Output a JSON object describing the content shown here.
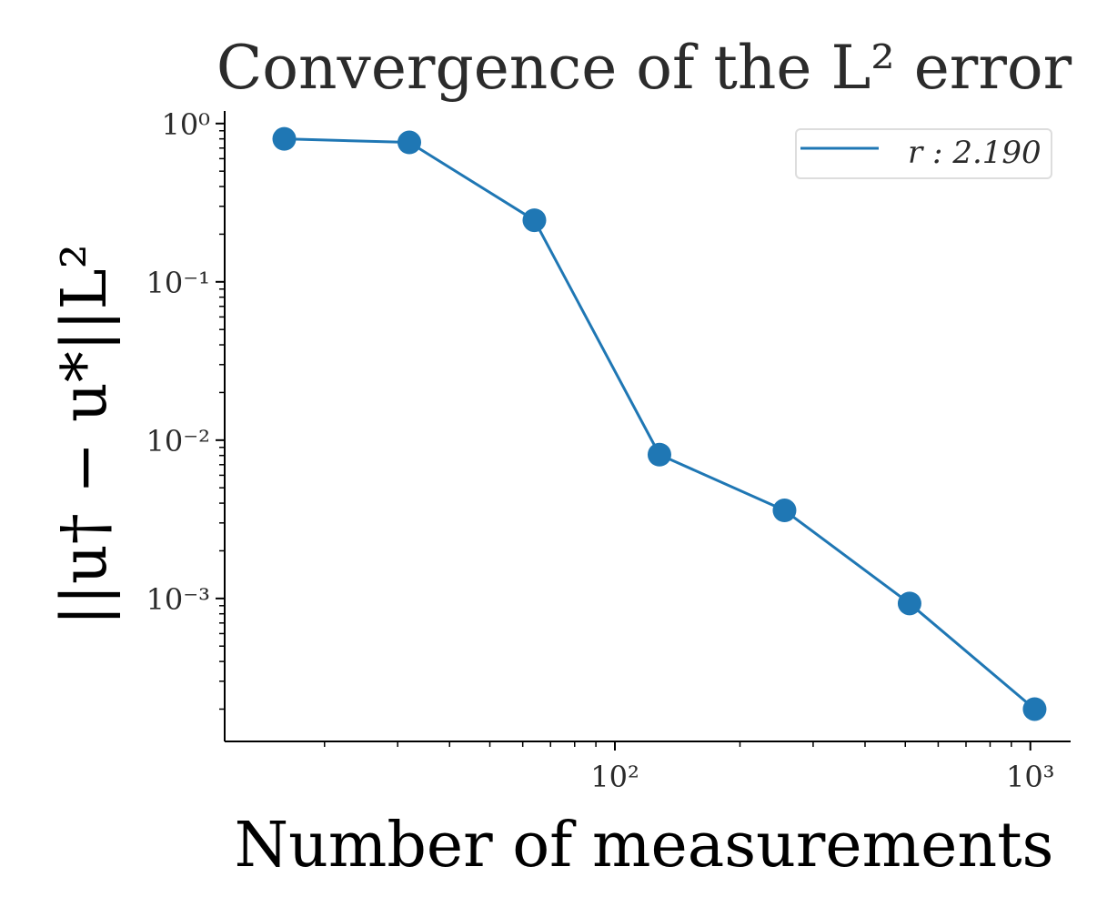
{
  "chart_data": {
    "type": "line",
    "title": "Convergence of the L² error",
    "xlabel": "Number of measurements",
    "ylabel": "||u† − u*||L²",
    "x_scale": "log",
    "y_scale": "log",
    "xlim": [
      11.5,
      1250
    ],
    "ylim": [
      0.000125,
      1.2
    ],
    "x_tick_labels": [
      "10²",
      "10³"
    ],
    "x_tick_values": [
      100,
      1000
    ],
    "y_tick_labels": [
      "10⁰",
      "10⁻¹",
      "10⁻²",
      "10⁻³"
    ],
    "y_tick_values": [
      1,
      0.1,
      0.01,
      0.001
    ],
    "legend_position": "top-right",
    "grid": false,
    "series": [
      {
        "name": "r : 2.190",
        "color": "#1f77b4",
        "marker": "circle",
        "x": [
          16,
          32,
          64,
          128,
          256,
          512,
          1024
        ],
        "y": [
          0.8,
          0.76,
          0.245,
          0.0081,
          0.0036,
          0.00093,
          0.0002
        ]
      }
    ]
  }
}
